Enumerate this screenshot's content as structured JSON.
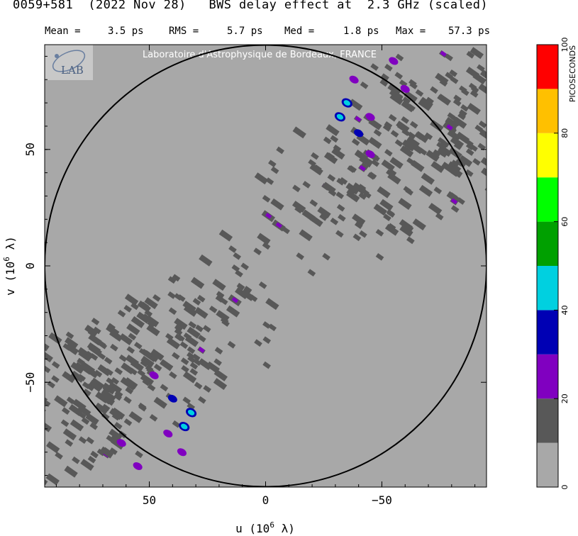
{
  "header": {
    "title": "0059+581  (2022 Nov 28)   BWS delay effect at  2.3 GHz (scaled)",
    "stats": [
      {
        "label": "Mean =",
        "value": "3.5 ps"
      },
      {
        "label": "RMS =",
        "value": "5.7 ps"
      },
      {
        "label": "Med =",
        "value": "1.8 ps"
      },
      {
        "label": "Max =",
        "value": "57.3 ps"
      }
    ]
  },
  "watermark": "Laboratoire d'Astrophysique de Bordeaux, FRANCE",
  "logo_text": "LAB",
  "chart_data": {
    "type": "heatmap",
    "title": "0059+581  (2022 Nov 28)   BWS delay effect at  2.3 GHz (scaled)",
    "xlabel": "u  (10^6 λ)",
    "ylabel": "v  (10^6 λ)",
    "xlim": [
      95,
      -95
    ],
    "ylim": [
      -95,
      95
    ],
    "x_ticks": [
      50,
      0,
      -50
    ],
    "x_tick_labels": [
      "50",
      "0",
      "−50"
    ],
    "y_ticks": [
      50,
      0,
      -50
    ],
    "y_tick_labels": [
      "50",
      "0",
      "−50"
    ],
    "circle_radius": 95,
    "colorbar": {
      "label": "PICOSECONDS",
      "ticks": [
        0,
        20,
        40,
        60,
        80,
        100
      ],
      "bands": [
        {
          "from": 0,
          "to": 10,
          "color": "#a8a8a8"
        },
        {
          "from": 10,
          "to": 20,
          "color": "#585858"
        },
        {
          "from": 20,
          "to": 30,
          "color": "#8000c0"
        },
        {
          "from": 30,
          "to": 40,
          "color": "#0000b4"
        },
        {
          "from": 40,
          "to": 50,
          "color": "#00d0e0"
        },
        {
          "from": 50,
          "to": 60,
          "color": "#00a000"
        },
        {
          "from": 60,
          "to": 70,
          "color": "#00ff00"
        },
        {
          "from": 70,
          "to": 80,
          "color": "#ffff00"
        },
        {
          "from": 80,
          "to": 90,
          "color": "#ffc000"
        },
        {
          "from": 90,
          "to": 100,
          "color": "#ff0000"
        }
      ]
    },
    "features": [
      {
        "u": -32,
        "v": 64,
        "delay_ps": 45
      },
      {
        "u": -35,
        "v": 70,
        "delay_ps": 42
      },
      {
        "u": -40,
        "v": 57,
        "delay_ps": 32
      },
      {
        "u": -38,
        "v": 80,
        "delay_ps": 28
      },
      {
        "u": -45,
        "v": 48,
        "delay_ps": 25
      },
      {
        "u": -55,
        "v": 88,
        "delay_ps": 22
      },
      {
        "u": -60,
        "v": 76,
        "delay_ps": 22
      },
      {
        "u": -45,
        "v": 64,
        "delay_ps": 22
      },
      {
        "u": 32,
        "v": -63,
        "delay_ps": 45
      },
      {
        "u": 35,
        "v": -69,
        "delay_ps": 42
      },
      {
        "u": 40,
        "v": -57,
        "delay_ps": 32
      },
      {
        "u": 36,
        "v": -80,
        "delay_ps": 28
      },
      {
        "u": 48,
        "v": -47,
        "delay_ps": 25
      },
      {
        "u": 55,
        "v": -86,
        "delay_ps": 22
      },
      {
        "u": 62,
        "v": -76,
        "delay_ps": 22
      },
      {
        "u": 42,
        "v": -72,
        "delay_ps": 24
      }
    ]
  }
}
